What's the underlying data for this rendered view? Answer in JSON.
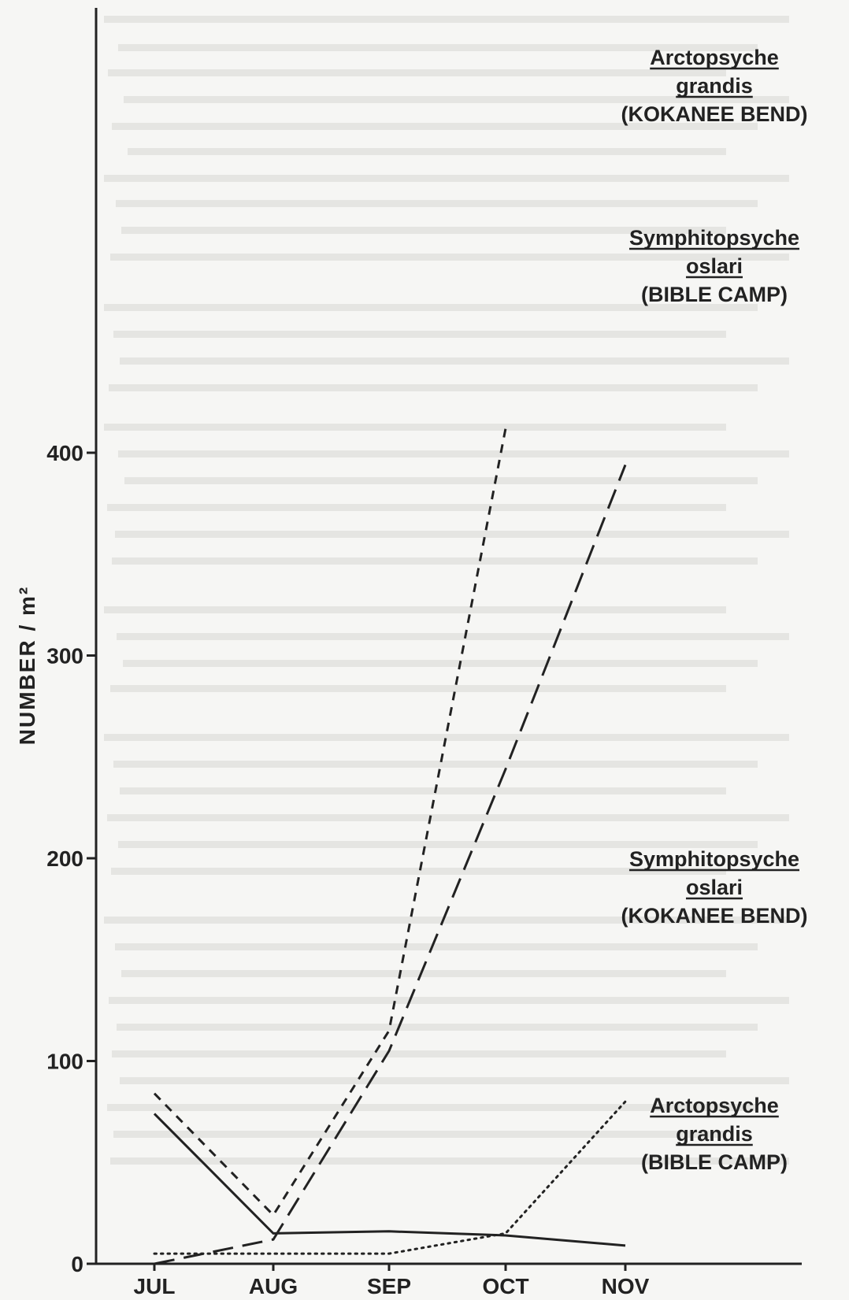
{
  "chart_data": {
    "type": "line",
    "title": "",
    "xlabel": "",
    "ylabel": "NUMBER / m²",
    "categories": [
      "JUL",
      "AUG",
      "SEP",
      "OCT",
      "NOV"
    ],
    "yticks": [
      0,
      100,
      200,
      300,
      400
    ],
    "ylim": [
      0,
      420
    ],
    "grid": false,
    "series": [
      {
        "name": "Arctopsyche grandis (KOKANEE BEND)",
        "label_lines": [
          "Arctopsyche",
          "grandis",
          "(KOKANEE BEND)"
        ],
        "underline_lines": [
          0,
          1
        ],
        "style": "long-dash",
        "values": [
          0,
          12,
          105,
          244,
          394
        ]
      },
      {
        "name": "Symphitopsyche oslari (BIBLE CAMP)",
        "label_lines": [
          "Symphitopsyche",
          "oslari",
          "(BIBLE CAMP)"
        ],
        "underline_lines": [
          0,
          1
        ],
        "style": "short-dash",
        "values": [
          84,
          24,
          115,
          412,
          null
        ]
      },
      {
        "name": "Symphitopsyche oslari (KOKANEE BEND)",
        "label_lines": [
          "Symphitopsyche",
          "oslari",
          "(KOKANEE BEND)"
        ],
        "underline_lines": [
          0,
          1
        ],
        "style": "dotted",
        "values": [
          5,
          5,
          5,
          15,
          80
        ]
      },
      {
        "name": "Arctopsyche grandis (BIBLE CAMP)",
        "label_lines": [
          "Arctopsyche",
          "grandis",
          "(BIBLE CAMP)"
        ],
        "underline_lines": [
          0,
          1
        ],
        "style": "solid",
        "values": [
          74,
          15,
          16,
          14,
          9
        ]
      }
    ]
  }
}
